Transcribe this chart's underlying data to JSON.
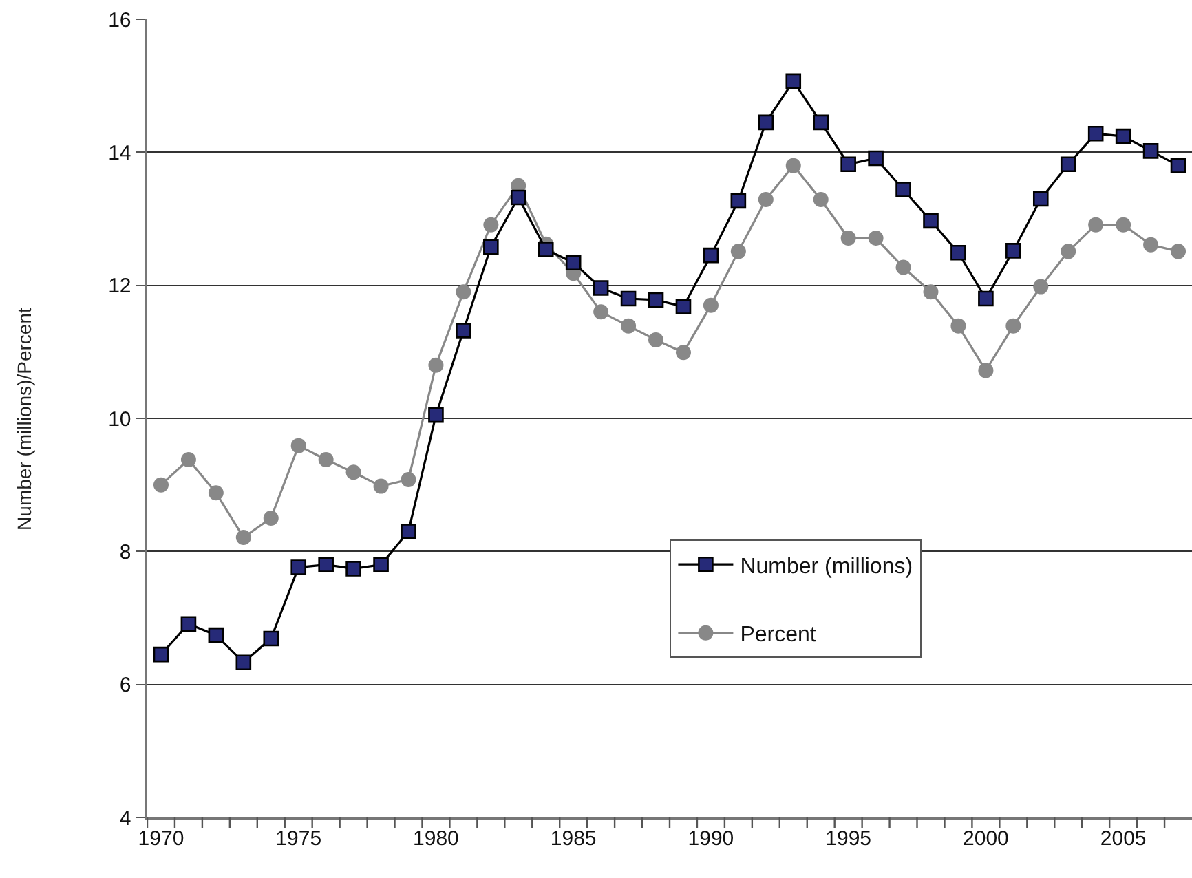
{
  "chart_data": {
    "type": "line",
    "ylabel": "Number (millions)/Percent",
    "x": [
      1970,
      1971,
      1972,
      1973,
      1974,
      1975,
      1976,
      1977,
      1978,
      1979,
      1980,
      1981,
      1982,
      1983,
      1984,
      1985,
      1986,
      1987,
      1988,
      1989,
      1990,
      1991,
      1992,
      1993,
      1994,
      1995,
      1996,
      1997,
      1998,
      1999,
      2000,
      2001,
      2002,
      2003,
      2004,
      2005,
      2006,
      2007
    ],
    "series": [
      {
        "name": "Number (millions)",
        "color": "#262a78",
        "marker": "square",
        "values": [
          6.45,
          6.91,
          6.74,
          6.33,
          6.69,
          7.76,
          7.8,
          7.74,
          7.8,
          8.3,
          10.05,
          11.32,
          12.58,
          13.32,
          12.54,
          12.34,
          11.96,
          11.8,
          11.78,
          11.68,
          12.45,
          13.27,
          14.45,
          15.07,
          14.45,
          13.82,
          13.91,
          13.44,
          12.97,
          12.49,
          11.8,
          12.52,
          13.3,
          13.82,
          14.28,
          14.24,
          14.02,
          13.8
        ]
      },
      {
        "name": "Percent",
        "color": "#888888",
        "marker": "circle",
        "values": [
          9.0,
          9.38,
          8.88,
          8.21,
          8.5,
          9.59,
          9.38,
          9.19,
          8.98,
          9.08,
          10.8,
          11.9,
          12.91,
          13.5,
          12.62,
          12.18,
          11.6,
          11.39,
          11.18,
          10.99,
          11.7,
          12.51,
          13.29,
          13.8,
          13.29,
          12.71,
          12.71,
          12.27,
          11.9,
          11.39,
          10.72,
          11.39,
          11.98,
          12.51,
          12.91,
          12.91,
          12.61,
          12.51
        ]
      }
    ],
    "xlim": [
      1969.5,
      2007.5
    ],
    "xticks": [
      1970,
      1975,
      1980,
      1985,
      1990,
      1995,
      2000,
      2005,
      {
        "value": 1969.5,
        "label": null
      },
      {
        "value": 1970.5,
        "label": null
      },
      {
        "value": 1971.5,
        "label": null
      },
      {
        "value": 1972.5,
        "label": null
      },
      {
        "value": 1973.5,
        "label": null
      },
      {
        "value": 1974.5,
        "label": null
      },
      {
        "value": 1975.5,
        "label": null
      },
      {
        "value": 1976.5,
        "label": null
      },
      {
        "value": 1977.5,
        "label": null
      },
      {
        "value": 1978.5,
        "label": null
      },
      {
        "value": 1979.5,
        "label": null
      },
      {
        "value": 1980.5,
        "label": null
      },
      {
        "value": 1981.5,
        "label": null
      },
      {
        "value": 1982.5,
        "label": null
      },
      {
        "value": 1983.5,
        "label": null
      },
      {
        "value": 1984.5,
        "label": null
      },
      {
        "value": 1985.5,
        "label": null
      },
      {
        "value": 1986.5,
        "label": null
      },
      {
        "value": 1987.5,
        "label": null
      },
      {
        "value": 1988.5,
        "label": null
      },
      {
        "value": 1989.5,
        "label": null
      },
      {
        "value": 1990.5,
        "label": null
      },
      {
        "value": 1991.5,
        "label": null
      },
      {
        "value": 1992.5,
        "label": null
      },
      {
        "value": 1993.5,
        "label": null
      },
      {
        "value": 1994.5,
        "label": null
      },
      {
        "value": 1995.5,
        "label": null
      },
      {
        "value": 1996.5,
        "label": null
      },
      {
        "value": 1997.5,
        "label": null
      },
      {
        "value": 1998.5,
        "label": null
      },
      {
        "value": 1999.5,
        "label": null
      },
      {
        "value": 2000.5,
        "label": null
      },
      {
        "value": 2001.5,
        "label": null
      },
      {
        "value": 2002.5,
        "label": null
      },
      {
        "value": 2003.5,
        "label": null
      },
      {
        "value": 2004.5,
        "label": null
      },
      {
        "value": 2005.5,
        "label": null
      },
      {
        "value": 2006.5,
        "label": null
      }
    ],
    "ylim": [
      4,
      16
    ],
    "yticks": [
      4,
      6,
      8,
      10,
      12,
      14,
      16
    ],
    "grid": "y",
    "legend": "bottom right",
    "line_style": "solid"
  }
}
